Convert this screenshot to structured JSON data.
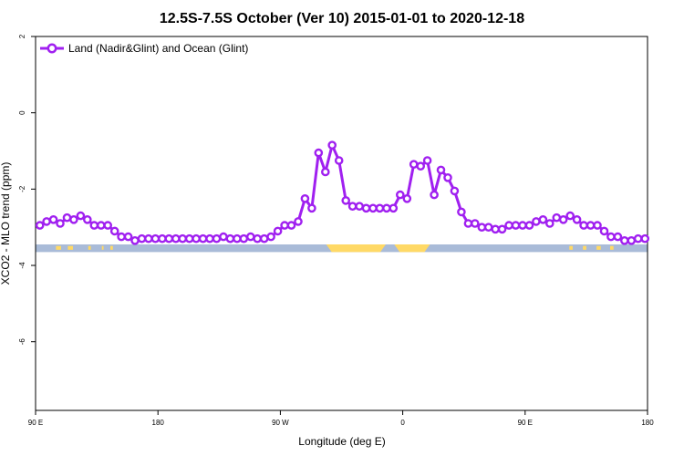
{
  "chart_data": {
    "type": "line",
    "title": "12.5S-7.5S October (Ver 10)   2015-01-01 to 2020-12-18",
    "xlabel": "Longitude (deg E)",
    "ylabel": "XCO2 - MLO trend (ppm)",
    "xlim": [
      90,
      450
    ],
    "ylim": [
      -7.8,
      2
    ],
    "x_ticks": [
      {
        "value": 90,
        "label": "90 E"
      },
      {
        "value": 162,
        "label": "180"
      },
      {
        "value": 234,
        "label": "90 W"
      },
      {
        "value": 306,
        "label": "0"
      },
      {
        "value": 378,
        "label": "90 E"
      },
      {
        "value": 450,
        "label": "180"
      }
    ],
    "y_ticks": [
      {
        "value": 2,
        "label": "2"
      },
      {
        "value": 0,
        "label": "0"
      },
      {
        "value": -2,
        "label": "-2"
      },
      {
        "value": -4,
        "label": "-4"
      },
      {
        "value": -6,
        "label": "-6"
      }
    ],
    "legend_position": "top-left",
    "grid": false,
    "series": [
      {
        "name": "Land (Nadir&Glint) and Ocean (Glint)",
        "color": "#a020f0",
        "x": [
          92.5,
          96.5,
          100.5,
          104.5,
          108.5,
          112.5,
          116.5,
          120.5,
          124.5,
          128.5,
          132.5,
          136.5,
          140.5,
          144.5,
          148.5,
          152.5,
          156.5,
          160.5,
          164.5,
          168.5,
          172.5,
          176.5,
          180.5,
          184.5,
          188.5,
          192.5,
          196.5,
          200.5,
          204.5,
          208.5,
          212.5,
          216.5,
          220.5,
          224.5,
          228.5,
          232.5,
          236.5,
          240.5,
          244.5,
          248.5,
          252.5,
          256.5,
          260.5,
          264.5,
          268.5,
          272.5,
          276.5,
          280.5,
          284.5,
          288.5,
          292.5,
          296.5,
          300.5,
          304.5,
          308.5,
          312.5,
          316.5,
          320.5,
          324.5,
          328.5,
          332.5,
          336.5,
          340.5,
          344.5,
          348.5,
          352.5,
          356.5,
          360.5,
          364.5,
          368.5,
          372.5,
          376.5,
          380.5,
          384.5,
          388.5,
          392.5,
          396.5,
          400.5,
          404.5,
          408.5,
          412.5,
          416.5,
          420.5,
          424.5,
          428.5,
          432.5,
          436.5,
          440.5,
          444.5,
          448.5
        ],
        "y": [
          -2.95,
          -2.85,
          -2.8,
          -2.9,
          -2.75,
          -2.8,
          -2.7,
          -2.8,
          -2.95,
          -2.95,
          -2.95,
          -3.1,
          -3.25,
          -3.25,
          -3.35,
          -3.3,
          -3.3,
          -3.3,
          -3.3,
          -3.3,
          -3.3,
          -3.3,
          -3.3,
          -3.3,
          -3.3,
          -3.3,
          -3.3,
          -3.25,
          -3.3,
          -3.3,
          -3.3,
          -3.25,
          -3.3,
          -3.3,
          -3.25,
          -3.1,
          -2.95,
          -2.95,
          -2.85,
          -2.25,
          -2.5,
          -1.05,
          -1.55,
          -0.85,
          -1.25,
          -2.3,
          -2.45,
          -2.45,
          -2.5,
          -2.5,
          -2.5,
          -2.5,
          -2.5,
          -2.15,
          -2.25,
          -1.35,
          -1.4,
          -1.25,
          -2.15,
          -1.5,
          -1.7,
          -2.05,
          -2.6,
          -2.9,
          -2.9,
          -3.0,
          -3.0,
          -3.05,
          -3.05,
          -2.95,
          -2.95,
          -2.95,
          -2.95,
          -2.85,
          -2.8,
          -2.9,
          -2.75,
          -2.8,
          -2.7,
          -2.8,
          -2.95,
          -2.95,
          -2.95,
          -3.1,
          -3.25,
          -3.25,
          -3.35,
          -3.35,
          -3.3,
          -3.3
        ]
      }
    ],
    "map_strip": {
      "y_top": -3.45,
      "y_bottom": -3.65,
      "ocean_color": "#a9bbd8",
      "land_color": "#ffd966",
      "land_segments": [
        [
          261,
          296
        ],
        [
          301,
          322
        ]
      ],
      "islands": [
        [
          102,
          105
        ],
        [
          109,
          112
        ],
        [
          121,
          122.5
        ],
        [
          129,
          130
        ],
        [
          134,
          135.5
        ],
        [
          404,
          406
        ],
        [
          412,
          414
        ],
        [
          420,
          422.5
        ],
        [
          428,
          430
        ]
      ]
    }
  }
}
